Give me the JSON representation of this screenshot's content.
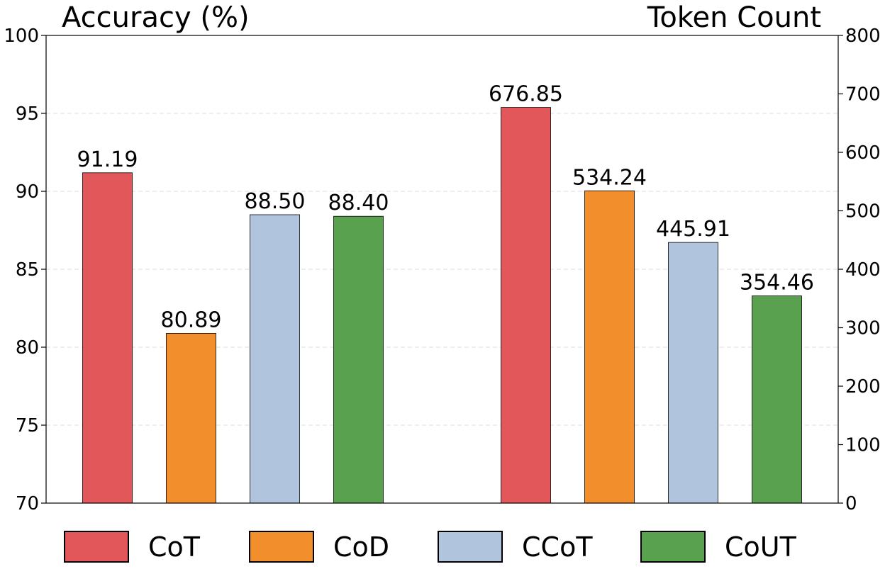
{
  "chart_data": {
    "type": "bar",
    "left_axis_title": "Accuracy (%)",
    "right_axis_title": "Token Count",
    "left_ylim": [
      70,
      100
    ],
    "left_ticks": [
      70,
      75,
      80,
      85,
      90,
      95,
      100
    ],
    "right_ylim": [
      0,
      800
    ],
    "right_ticks": [
      0,
      100,
      200,
      300,
      400,
      500,
      600,
      700,
      800
    ],
    "grid": true,
    "legend_position": "bottom",
    "series": [
      {
        "name": "CoT",
        "color": "#e1575a"
      },
      {
        "name": "CoD",
        "color": "#f28e2c"
      },
      {
        "name": "CCoT",
        "color": "#b0c4de"
      },
      {
        "name": "CoUT",
        "color": "#59a14f"
      }
    ],
    "accuracy": {
      "values": [
        91.19,
        80.89,
        88.5,
        88.4
      ],
      "labels": [
        "91.19",
        "80.89",
        "88.50",
        "88.40"
      ]
    },
    "tokens": {
      "values": [
        676.85,
        534.24,
        445.91,
        354.46
      ],
      "labels": [
        "676.85",
        "534.24",
        "445.91",
        "354.46"
      ]
    }
  }
}
